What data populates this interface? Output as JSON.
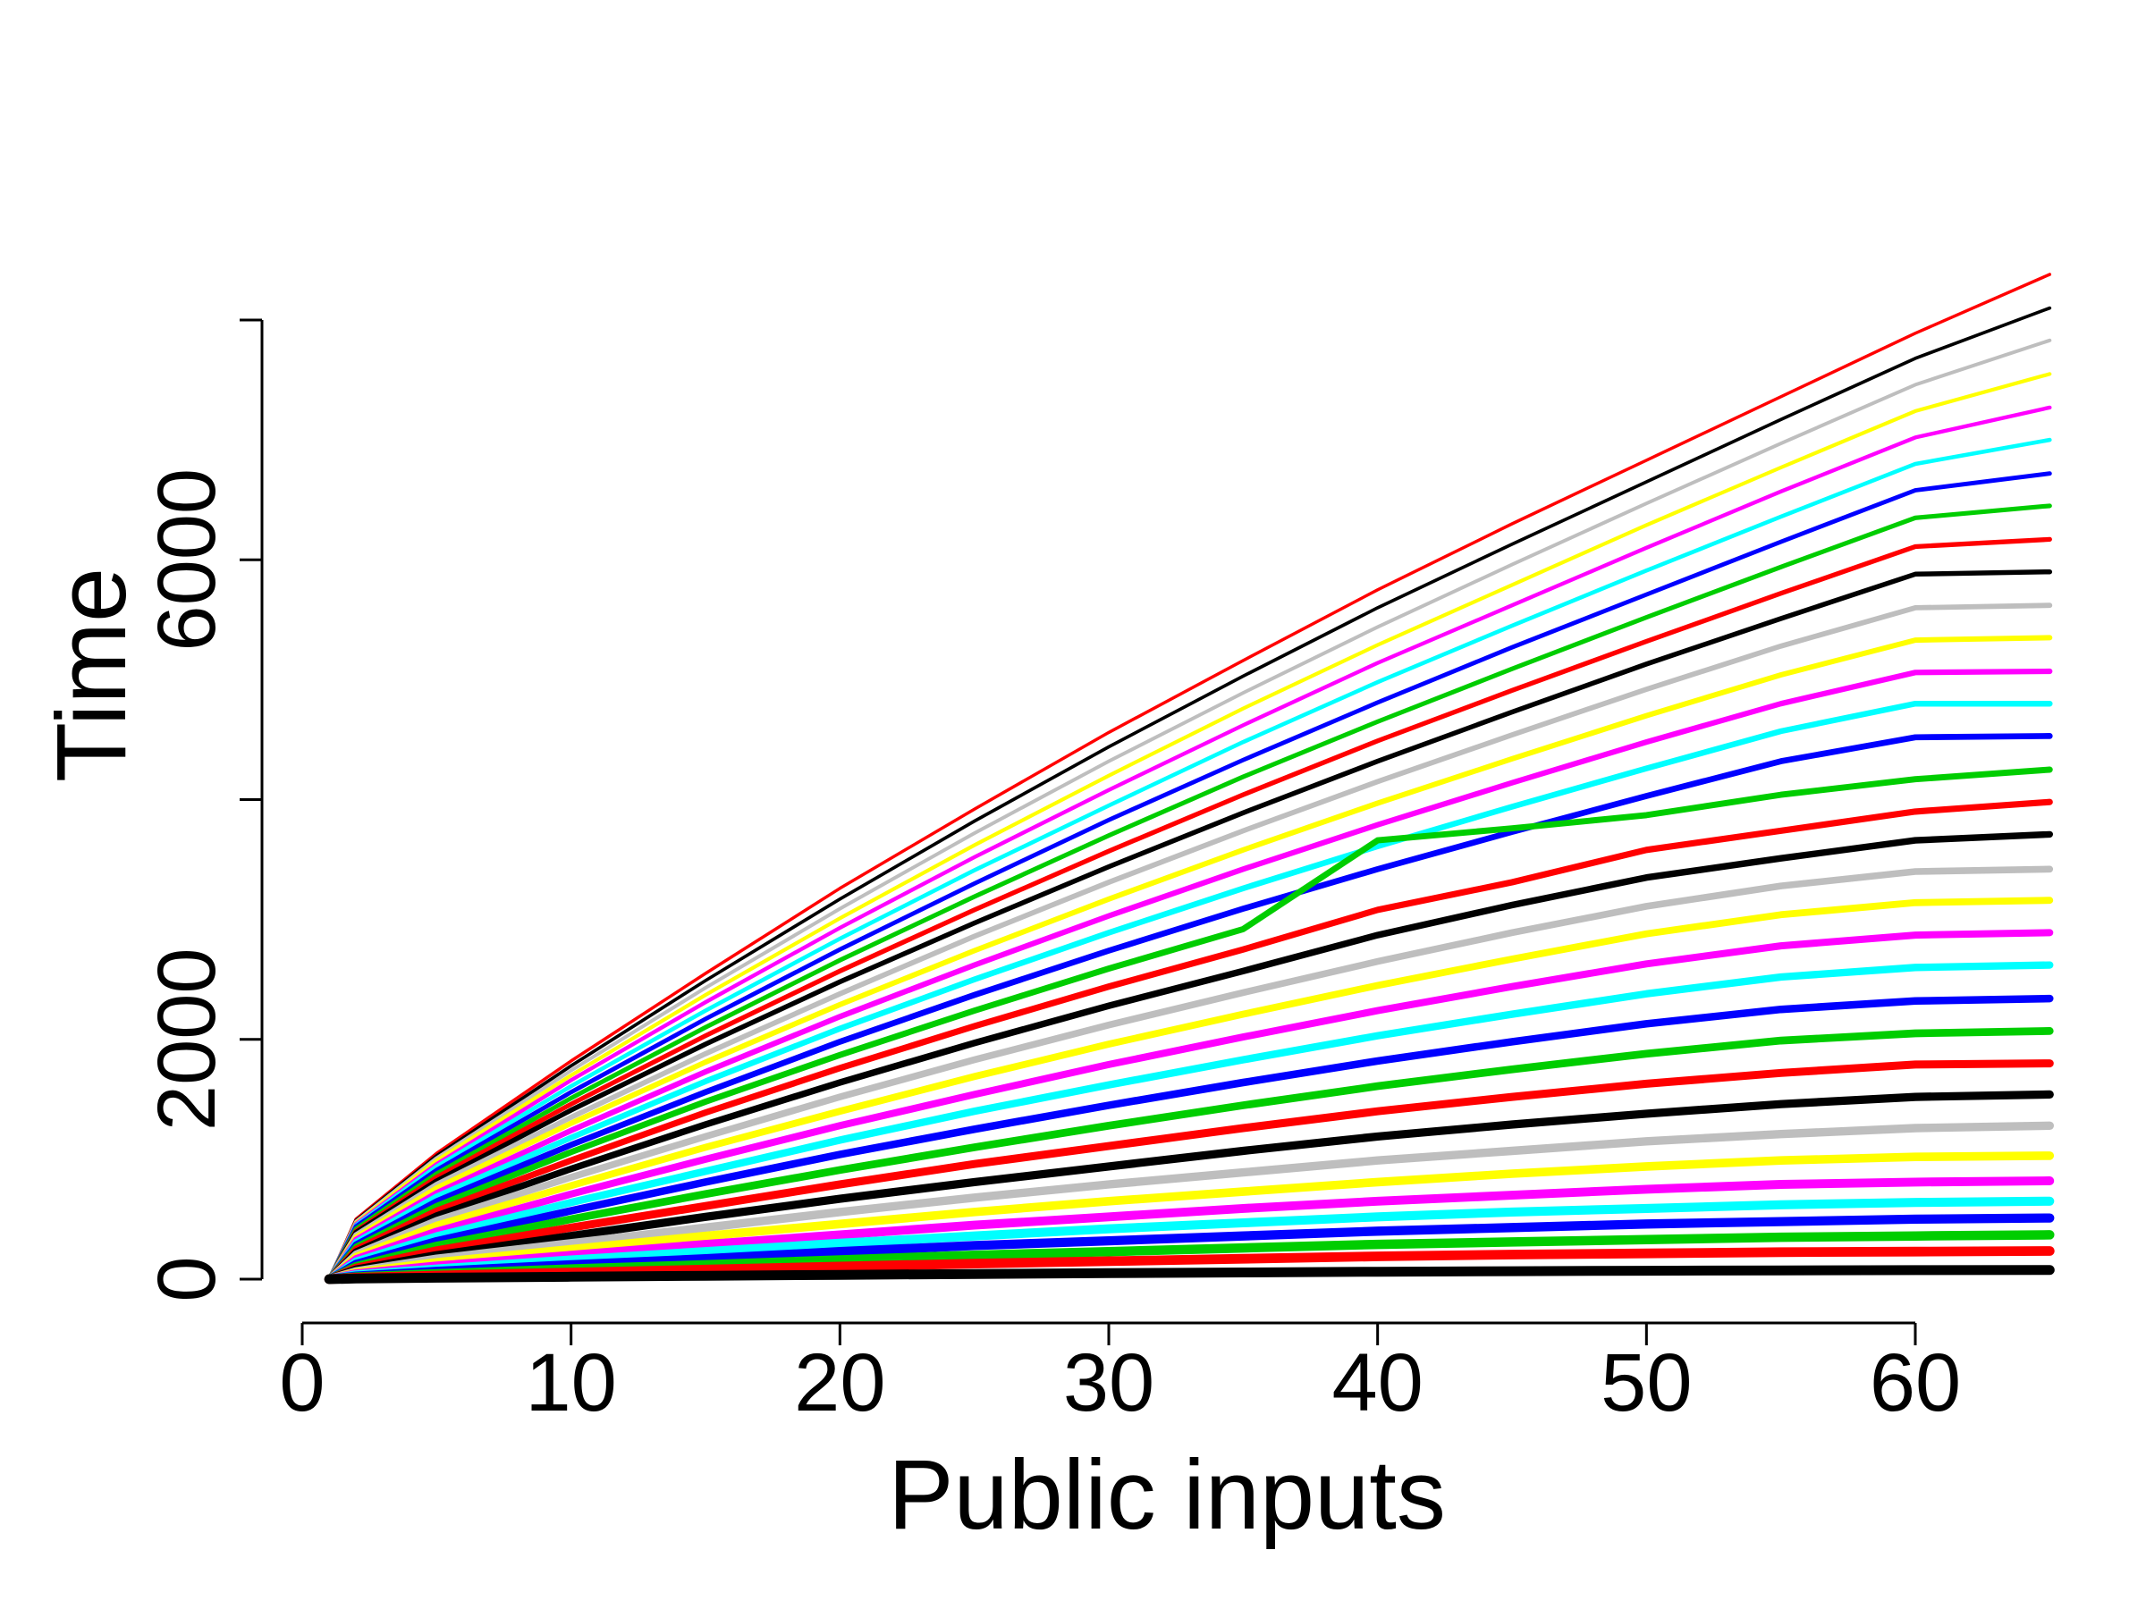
{
  "chart_data": {
    "type": "line",
    "title": "",
    "xlabel": "Public inputs",
    "ylabel": "Time",
    "xlim": [
      0,
      65
    ],
    "ylim": [
      0,
      8000
    ],
    "x_ticks": [
      0,
      10,
      20,
      30,
      40,
      50,
      60
    ],
    "x_tick_labels": [
      "0",
      "10",
      "20",
      "30",
      "40",
      "50",
      "60"
    ],
    "y_ticks": [
      0,
      2000,
      4000,
      6000,
      8000
    ],
    "y_tick_labels": [
      "0",
      "2000",
      "",
      "6000",
      ""
    ],
    "grid": false,
    "legend": "none",
    "colors": [
      "#ff0000",
      "#000000",
      "#bebebe",
      "#ffff00",
      "#ff00ff",
      "#00ffff",
      "#0000ff",
      "#00cd00"
    ],
    "x": [
      1,
      2,
      5,
      10,
      15,
      20,
      25,
      30,
      35,
      40,
      45,
      50,
      55,
      60,
      65
    ],
    "series": [
      {
        "color": "#ff0000",
        "values": [
          0,
          500,
          1050,
          1820,
          2550,
          3260,
          3920,
          4560,
          5160,
          5750,
          6300,
          6830,
          7360,
          7890,
          8380
        ]
      },
      {
        "color": "#000000",
        "values": [
          0,
          490,
          1030,
          1780,
          2490,
          3170,
          3820,
          4440,
          5030,
          5600,
          6130,
          6650,
          7170,
          7680,
          8100
        ]
      },
      {
        "color": "#bebebe",
        "values": [
          0,
          480,
          1010,
          1740,
          2430,
          3090,
          3720,
          4320,
          4890,
          5440,
          5960,
          6470,
          6970,
          7460,
          7830
        ]
      },
      {
        "color": "#ffff00",
        "values": [
          0,
          470,
          990,
          1700,
          2370,
          3010,
          3620,
          4200,
          4760,
          5290,
          5790,
          6290,
          6770,
          7240,
          7550
        ]
      },
      {
        "color": "#ff00ff",
        "values": [
          0,
          460,
          960,
          1660,
          2310,
          2930,
          3520,
          4080,
          4620,
          5140,
          5620,
          6100,
          6570,
          7020,
          7270
        ]
      },
      {
        "color": "#00ffff",
        "values": [
          0,
          450,
          940,
          1610,
          2240,
          2840,
          3410,
          3950,
          4480,
          4980,
          5450,
          5910,
          6360,
          6800,
          7000
        ]
      },
      {
        "color": "#0000ff",
        "values": [
          0,
          440,
          910,
          1560,
          2170,
          2750,
          3300,
          3830,
          4330,
          4810,
          5270,
          5710,
          6150,
          6580,
          6720
        ]
      },
      {
        "color": "#00cd00",
        "values": [
          0,
          420,
          880,
          1510,
          2100,
          2660,
          3190,
          3700,
          4190,
          4650,
          5090,
          5520,
          5940,
          6350,
          6450
        ]
      },
      {
        "color": "#ff0000",
        "values": [
          0,
          400,
          850,
          1460,
          2030,
          2570,
          3080,
          3570,
          4040,
          4490,
          4910,
          5320,
          5720,
          6110,
          6170
        ]
      },
      {
        "color": "#000000",
        "values": [
          0,
          390,
          820,
          1410,
          1960,
          2480,
          2970,
          3440,
          3890,
          4320,
          4730,
          5130,
          5510,
          5880,
          5900
        ]
      },
      {
        "color": "#bebebe",
        "values": [
          0,
          370,
          790,
          1350,
          1880,
          2380,
          2860,
          3310,
          3740,
          4150,
          4540,
          4920,
          5280,
          5600,
          5620
        ]
      },
      {
        "color": "#ffff00",
        "values": [
          0,
          350,
          760,
          1300,
          1810,
          2290,
          2740,
          3170,
          3580,
          3970,
          4340,
          4700,
          5040,
          5330,
          5350
        ]
      },
      {
        "color": "#ff00ff",
        "values": [
          0,
          330,
          720,
          1240,
          1730,
          2190,
          2620,
          3030,
          3420,
          3790,
          4140,
          4480,
          4800,
          5060,
          5070
        ]
      },
      {
        "color": "#00ffff",
        "values": [
          0,
          310,
          690,
          1180,
          1650,
          2090,
          2500,
          2890,
          3260,
          3610,
          3940,
          4260,
          4570,
          4800,
          4800
        ]
      },
      {
        "color": "#0000ff",
        "values": [
          0,
          290,
          650,
          1120,
          1560,
          1980,
          2370,
          2740,
          3090,
          3420,
          3730,
          4030,
          4320,
          4520,
          4530
        ]
      },
      {
        "color": "#00cd00",
        "values": [
          0,
          270,
          610,
          1060,
          1480,
          1870,
          2240,
          2590,
          2920,
          3660,
          3760,
          3870,
          4040,
          4170,
          4250
        ]
      },
      {
        "color": "#ff0000",
        "values": [
          0,
          250,
          570,
          990,
          1390,
          1760,
          2110,
          2440,
          2750,
          3080,
          3310,
          3580,
          3740,
          3900,
          3980
        ]
      },
      {
        "color": "#000000",
        "values": [
          0,
          230,
          530,
          920,
          1290,
          1640,
          1970,
          2280,
          2570,
          2870,
          3120,
          3350,
          3510,
          3660,
          3710
        ]
      },
      {
        "color": "#bebebe",
        "values": [
          0,
          210,
          490,
          850,
          1190,
          1520,
          1830,
          2120,
          2390,
          2650,
          2890,
          3110,
          3280,
          3400,
          3420
        ]
      },
      {
        "color": "#ffff00",
        "values": [
          0,
          190,
          450,
          780,
          1100,
          1400,
          1690,
          1960,
          2210,
          2450,
          2670,
          2880,
          3040,
          3140,
          3160
        ]
      },
      {
        "color": "#ff00ff",
        "values": [
          0,
          170,
          400,
          710,
          1000,
          1280,
          1540,
          1790,
          2020,
          2240,
          2440,
          2630,
          2780,
          2870,
          2890
        ]
      },
      {
        "color": "#00ffff",
        "values": [
          0,
          150,
          360,
          640,
          900,
          1160,
          1400,
          1620,
          1830,
          2030,
          2210,
          2380,
          2520,
          2600,
          2620
        ]
      },
      {
        "color": "#0000ff",
        "values": [
          0,
          130,
          320,
          570,
          810,
          1040,
          1250,
          1450,
          1640,
          1820,
          1980,
          2130,
          2250,
          2320,
          2340
        ]
      },
      {
        "color": "#00cd00",
        "values": [
          0,
          110,
          280,
          500,
          710,
          910,
          1100,
          1280,
          1450,
          1610,
          1750,
          1880,
          1990,
          2050,
          2070
        ]
      },
      {
        "color": "#ff0000",
        "values": [
          0,
          95,
          240,
          430,
          610,
          790,
          960,
          1110,
          1260,
          1400,
          1520,
          1630,
          1720,
          1790,
          1800
        ]
      },
      {
        "color": "#000000",
        "values": [
          0,
          80,
          200,
          360,
          520,
          670,
          810,
          940,
          1070,
          1190,
          1290,
          1380,
          1460,
          1520,
          1540
        ]
      },
      {
        "color": "#bebebe",
        "values": [
          0,
          65,
          170,
          300,
          430,
          560,
          680,
          790,
          890,
          990,
          1070,
          1150,
          1210,
          1260,
          1280
        ]
      },
      {
        "color": "#ffff00",
        "values": [
          0,
          55,
          140,
          250,
          360,
          460,
          560,
          650,
          730,
          810,
          880,
          940,
          990,
          1020,
          1030
        ]
      },
      {
        "color": "#ff00ff",
        "values": [
          0,
          45,
          110,
          200,
          290,
          370,
          450,
          520,
          590,
          650,
          700,
          750,
          790,
          810,
          820
        ]
      },
      {
        "color": "#00ffff",
        "values": [
          0,
          35,
          85,
          160,
          230,
          300,
          360,
          420,
          470,
          520,
          560,
          590,
          620,
          640,
          650
        ]
      },
      {
        "color": "#0000ff",
        "values": [
          0,
          25,
          65,
          120,
          170,
          230,
          280,
          320,
          360,
          400,
          430,
          460,
          480,
          500,
          510
        ]
      },
      {
        "color": "#00cd00",
        "values": [
          0,
          18,
          45,
          85,
          120,
          160,
          200,
          230,
          260,
          290,
          310,
          330,
          350,
          360,
          370
        ]
      },
      {
        "color": "#ff0000",
        "values": [
          0,
          12,
          30,
          55,
          80,
          105,
          130,
          150,
          170,
          190,
          205,
          215,
          225,
          230,
          235
        ]
      },
      {
        "color": "#000000",
        "values": [
          0,
          5,
          12,
          20,
          28,
          36,
          43,
          50,
          56,
          62,
          66,
          70,
          73,
          75,
          76
        ]
      }
    ]
  }
}
